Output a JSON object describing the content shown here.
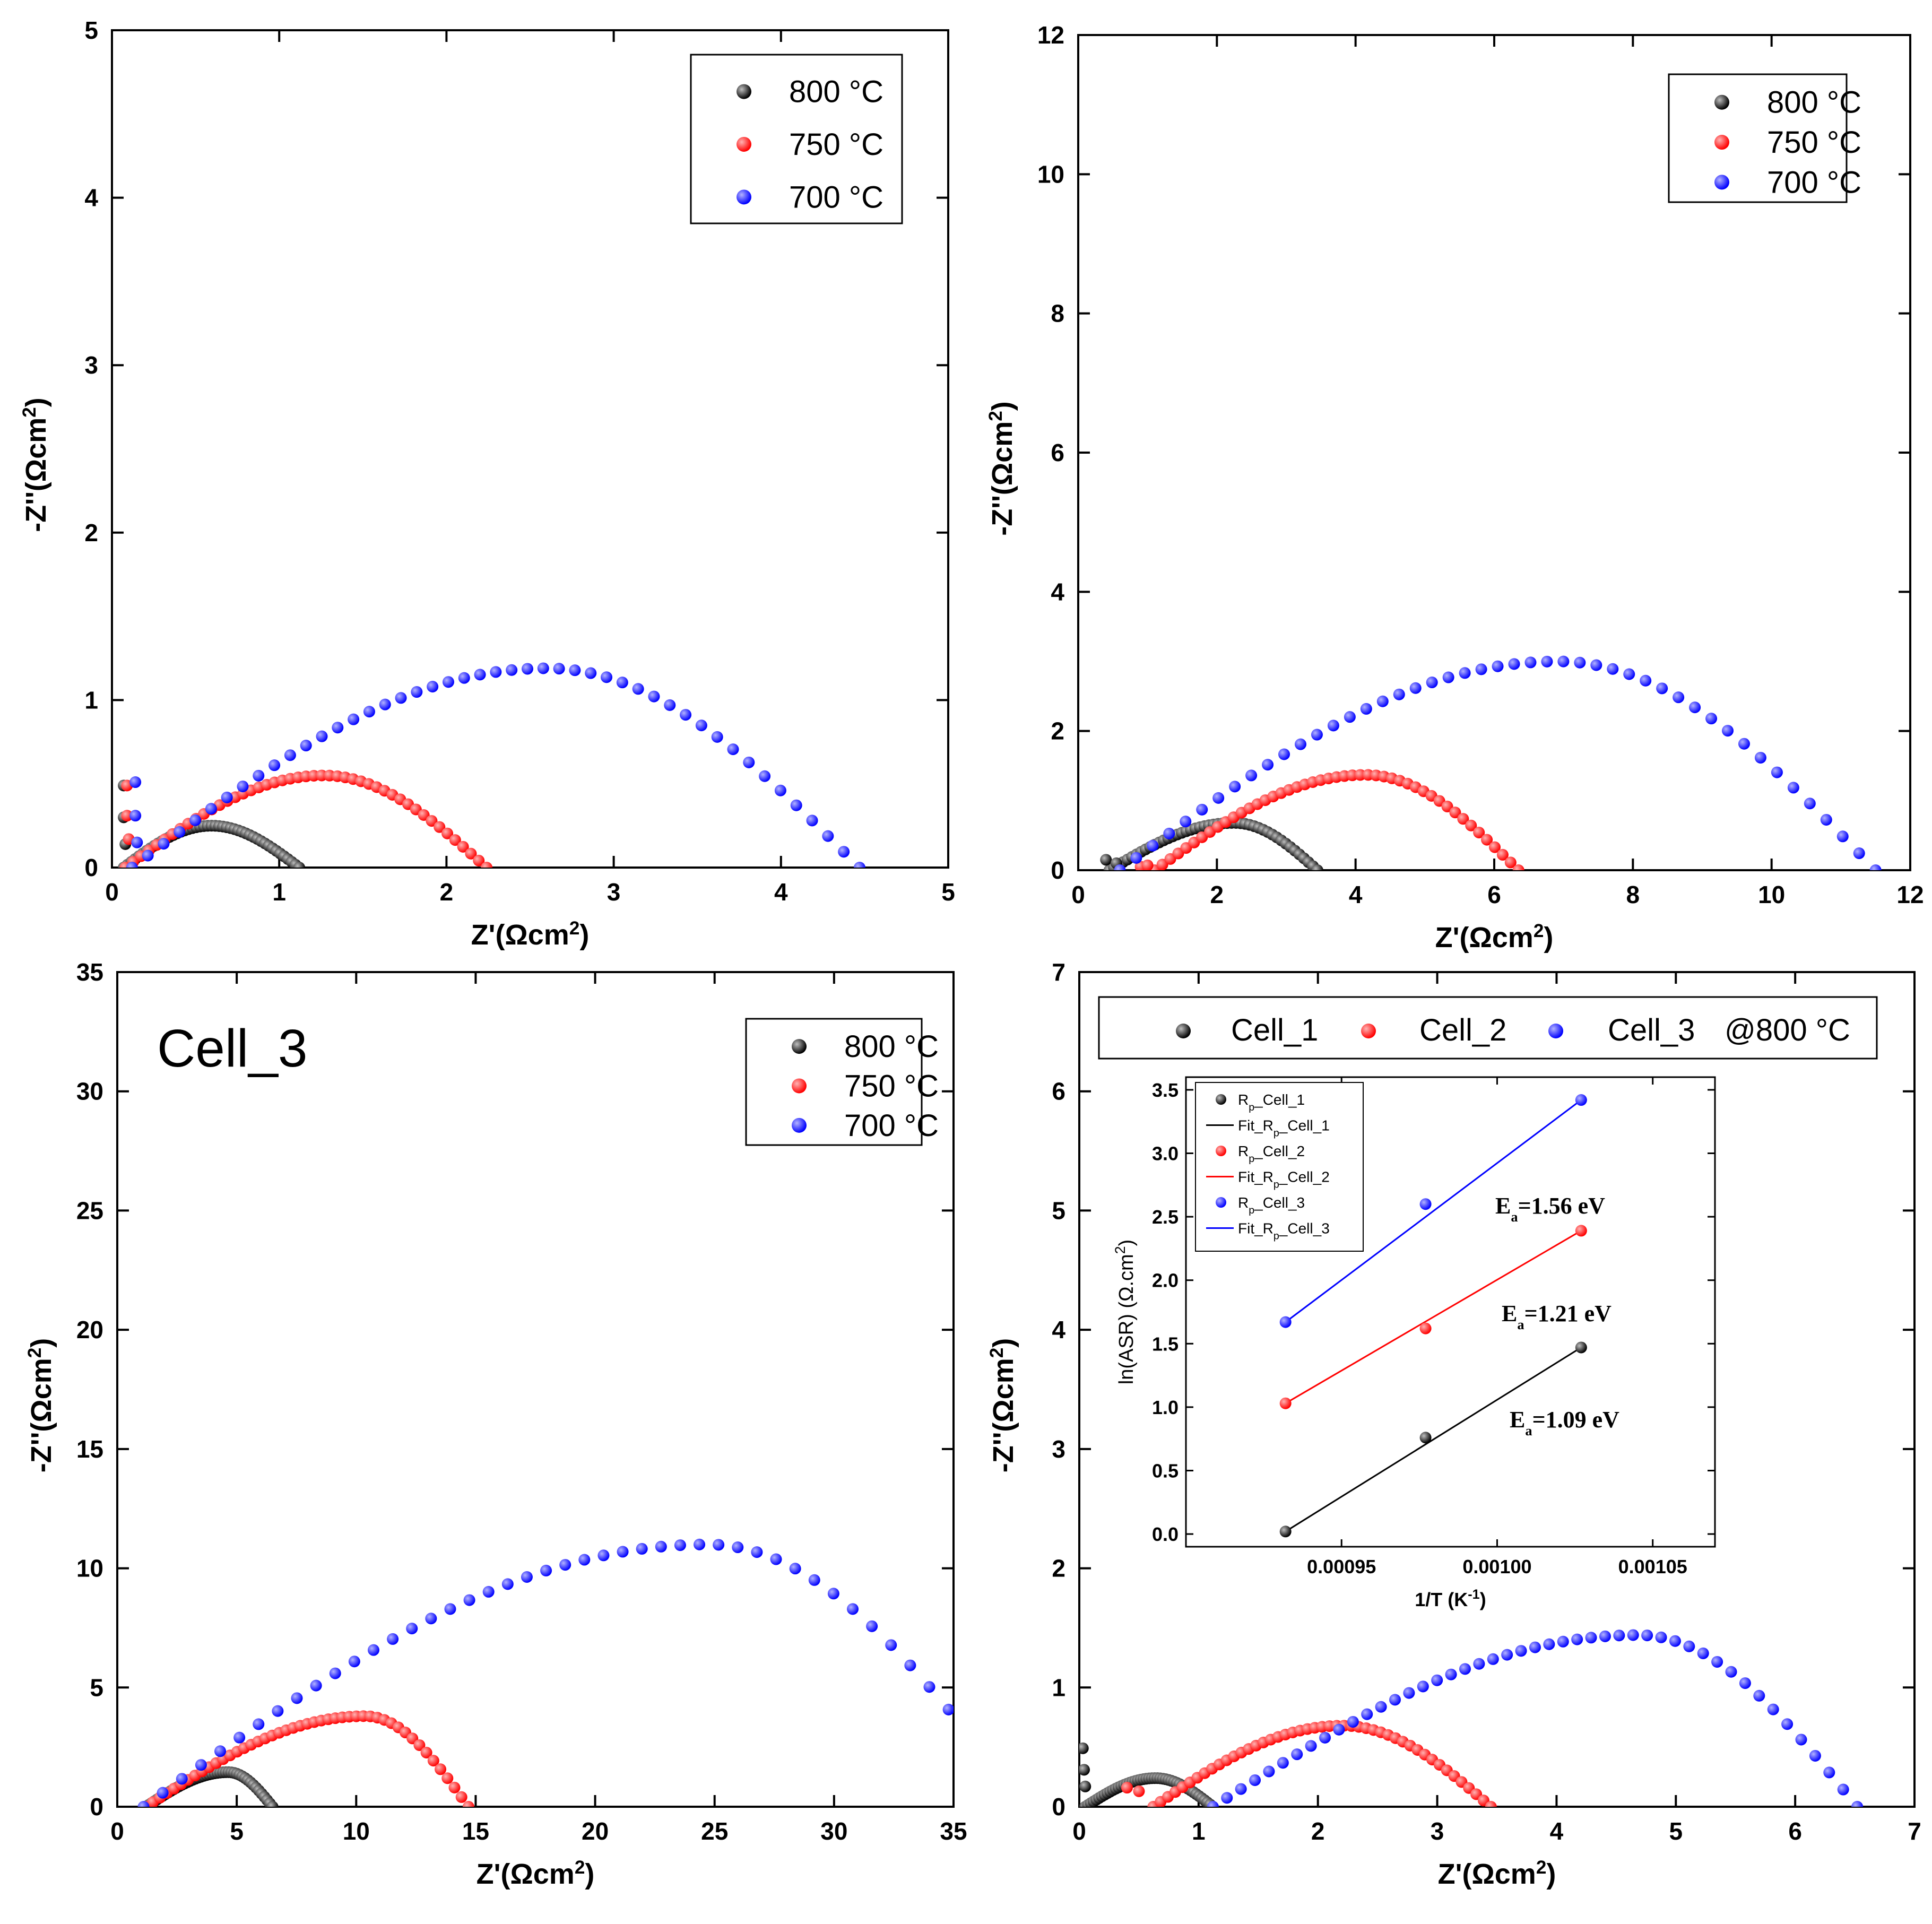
{
  "chart_data": [
    {
      "type": "scatter",
      "xlabel": "Z'(Ωcm²)",
      "ylabel": "-Z''(Ωcm²)",
      "xlim": [
        0,
        5
      ],
      "ylim": [
        0,
        5
      ],
      "xticks": [
        0,
        1,
        2,
        3,
        4,
        5
      ],
      "yticks": [
        0,
        1,
        2,
        3,
        4,
        5
      ],
      "legend_position": "top-right",
      "series": [
        {
          "name": "800 °C",
          "color": "#000000",
          "arc": {
            "x_start": 0.07,
            "x_end": 1.12,
            "peak_height": 0.25,
            "peak_frac": 0.5
          },
          "tail": [
            [
              0.07,
              0.49
            ],
            [
              0.07,
              0.3
            ],
            [
              0.08,
              0.14
            ]
          ]
        },
        {
          "name": "750 °C",
          "color": "#ff0000",
          "arc": {
            "x_start": 0.08,
            "x_end": 2.24,
            "peak_height": 0.55,
            "peak_frac": 0.55
          },
          "tail": [
            [
              0.09,
              0.49
            ],
            [
              0.09,
              0.31
            ],
            [
              0.1,
              0.17
            ]
          ]
        },
        {
          "name": "700 °C",
          "color": "#0000ff",
          "arc": {
            "x_start": 0.12,
            "x_end": 4.47,
            "peak_height": 1.19,
            "peak_frac": 0.57
          },
          "tail": [
            [
              0.14,
              0.51
            ],
            [
              0.14,
              0.31
            ],
            [
              0.15,
              0.15
            ]
          ]
        }
      ]
    },
    {
      "type": "scatter",
      "xlabel": "Z'(Ωcm²)",
      "ylabel": "-Z''(Ωcm²)",
      "xlim": [
        0,
        12
      ],
      "ylim": [
        0,
        12
      ],
      "xticks": [
        0,
        2,
        4,
        6,
        8,
        10,
        12
      ],
      "yticks": [
        0,
        2,
        4,
        6,
        8,
        10,
        12
      ],
      "legend_position": "top-right",
      "series": [
        {
          "name": "800 °C",
          "color": "#000000",
          "arc": {
            "x_start": 0.45,
            "x_end": 3.45,
            "peak_height": 0.68,
            "peak_frac": 0.6
          },
          "tail": [
            [
              0.4,
              0.15
            ],
            [
              0.55,
              0.1
            ]
          ]
        },
        {
          "name": "750 °C",
          "color": "#ff0000",
          "arc": {
            "x_start": 1.1,
            "x_end": 6.35,
            "peak_height": 1.37,
            "peak_frac": 0.58
          },
          "tail": [
            [
              0.9,
              0.05
            ],
            [
              1.0,
              0.07
            ]
          ]
        },
        {
          "name": "700 °C",
          "color": "#0000ff",
          "arc": {
            "x_start": 0.6,
            "x_end": 11.5,
            "peak_height": 3.0,
            "peak_frac": 0.58
          },
          "tail": []
        }
      ]
    },
    {
      "type": "scatter",
      "xlabel": "Z'(Ωcm²)",
      "ylabel": "-Z''(Ωcm²)",
      "xlim": [
        0,
        35
      ],
      "ylim": [
        0,
        35
      ],
      "xticks": [
        0,
        5,
        10,
        15,
        20,
        25,
        30,
        35
      ],
      "yticks": [
        0,
        5,
        10,
        15,
        20,
        25,
        30,
        35
      ],
      "legend_position": "top-right",
      "annotation": "Cell_3",
      "series": [
        {
          "name": "800 °C",
          "color": "#000000",
          "arc": {
            "x_start": 1.2,
            "x_end": 6.5,
            "peak_height": 1.45,
            "peak_frac": 0.65
          },
          "tail": []
        },
        {
          "name": "750 °C",
          "color": "#ff0000",
          "arc": {
            "x_start": 1.2,
            "x_end": 14.7,
            "peak_height": 3.8,
            "peak_frac": 0.68
          },
          "tail": []
        },
        {
          "name": "700 °C",
          "color": "#0000ff",
          "arc": {
            "x_start": 1.1,
            "x_end": 38.0,
            "peak_height": 11.0,
            "peak_frac": 0.64
          },
          "tail": []
        }
      ]
    },
    {
      "type": "scatter",
      "xlabel": "Z'(Ωcm²)",
      "ylabel": "-Z''(Ωcm²)",
      "xlim": [
        0,
        7
      ],
      "ylim": [
        0,
        7
      ],
      "xticks": [
        0,
        1,
        2,
        3,
        4,
        5,
        6,
        7
      ],
      "yticks": [
        0,
        1,
        2,
        3,
        4,
        5,
        6,
        7
      ],
      "legend_position": "top",
      "legend_suffix": "@800 °C",
      "series": [
        {
          "name": "Cell_1",
          "color": "#000000",
          "arc": {
            "x_start": 0.05,
            "x_end": 1.12,
            "peak_height": 0.24,
            "peak_frac": 0.55
          },
          "tail": [
            [
              0.03,
              0.49
            ],
            [
              0.04,
              0.31
            ],
            [
              0.05,
              0.17
            ]
          ]
        },
        {
          "name": "Cell_2",
          "color": "#ff0000",
          "arc": {
            "x_start": 0.62,
            "x_end": 3.45,
            "peak_height": 0.68,
            "peak_frac": 0.56
          },
          "tail": [
            [
              0.4,
              0.16
            ],
            [
              0.5,
              0.13
            ]
          ]
        },
        {
          "name": "Cell_3",
          "color": "#0000ff",
          "arc": {
            "x_start": 1.12,
            "x_end": 6.52,
            "peak_height": 1.44,
            "peak_frac": 0.66
          },
          "tail": []
        }
      ]
    },
    {
      "type": "scatter",
      "inset": true,
      "xlabel": "1/T (K⁻¹)",
      "ylabel": "ln(ASR) (Ω.cm²)",
      "xlim": [
        0.0009,
        0.00107
      ],
      "ylim": [
        -0.1,
        3.6
      ],
      "xticks": [
        "0.00095",
        "0.00100",
        "0.00105"
      ],
      "yticks": [
        "0.0",
        "0.5",
        "1.0",
        "1.5",
        "2.0",
        "2.5",
        "3.0",
        "3.5"
      ],
      "x": [
        0.000932,
        0.000977,
        0.001027
      ],
      "series": [
        {
          "name": "Rp_Cell_1",
          "fit_name": "Fit_Rp_Cell_1",
          "color": "#000000",
          "values": [
            0.02,
            0.76,
            1.47
          ],
          "activation": "Ea=1.09 eV"
        },
        {
          "name": "Rp_Cell_2",
          "fit_name": "Fit_Rp_Cell_2",
          "color": "#ff0000",
          "values": [
            1.03,
            1.62,
            2.39
          ],
          "activation": "Ea=1.21 eV"
        },
        {
          "name": "Rp_Cell_3",
          "fit_name": "Fit_Rp_Cell_3",
          "color": "#0000ff",
          "values": [
            1.67,
            2.6,
            3.42
          ],
          "activation": "Ea=1.56 eV"
        }
      ]
    }
  ]
}
